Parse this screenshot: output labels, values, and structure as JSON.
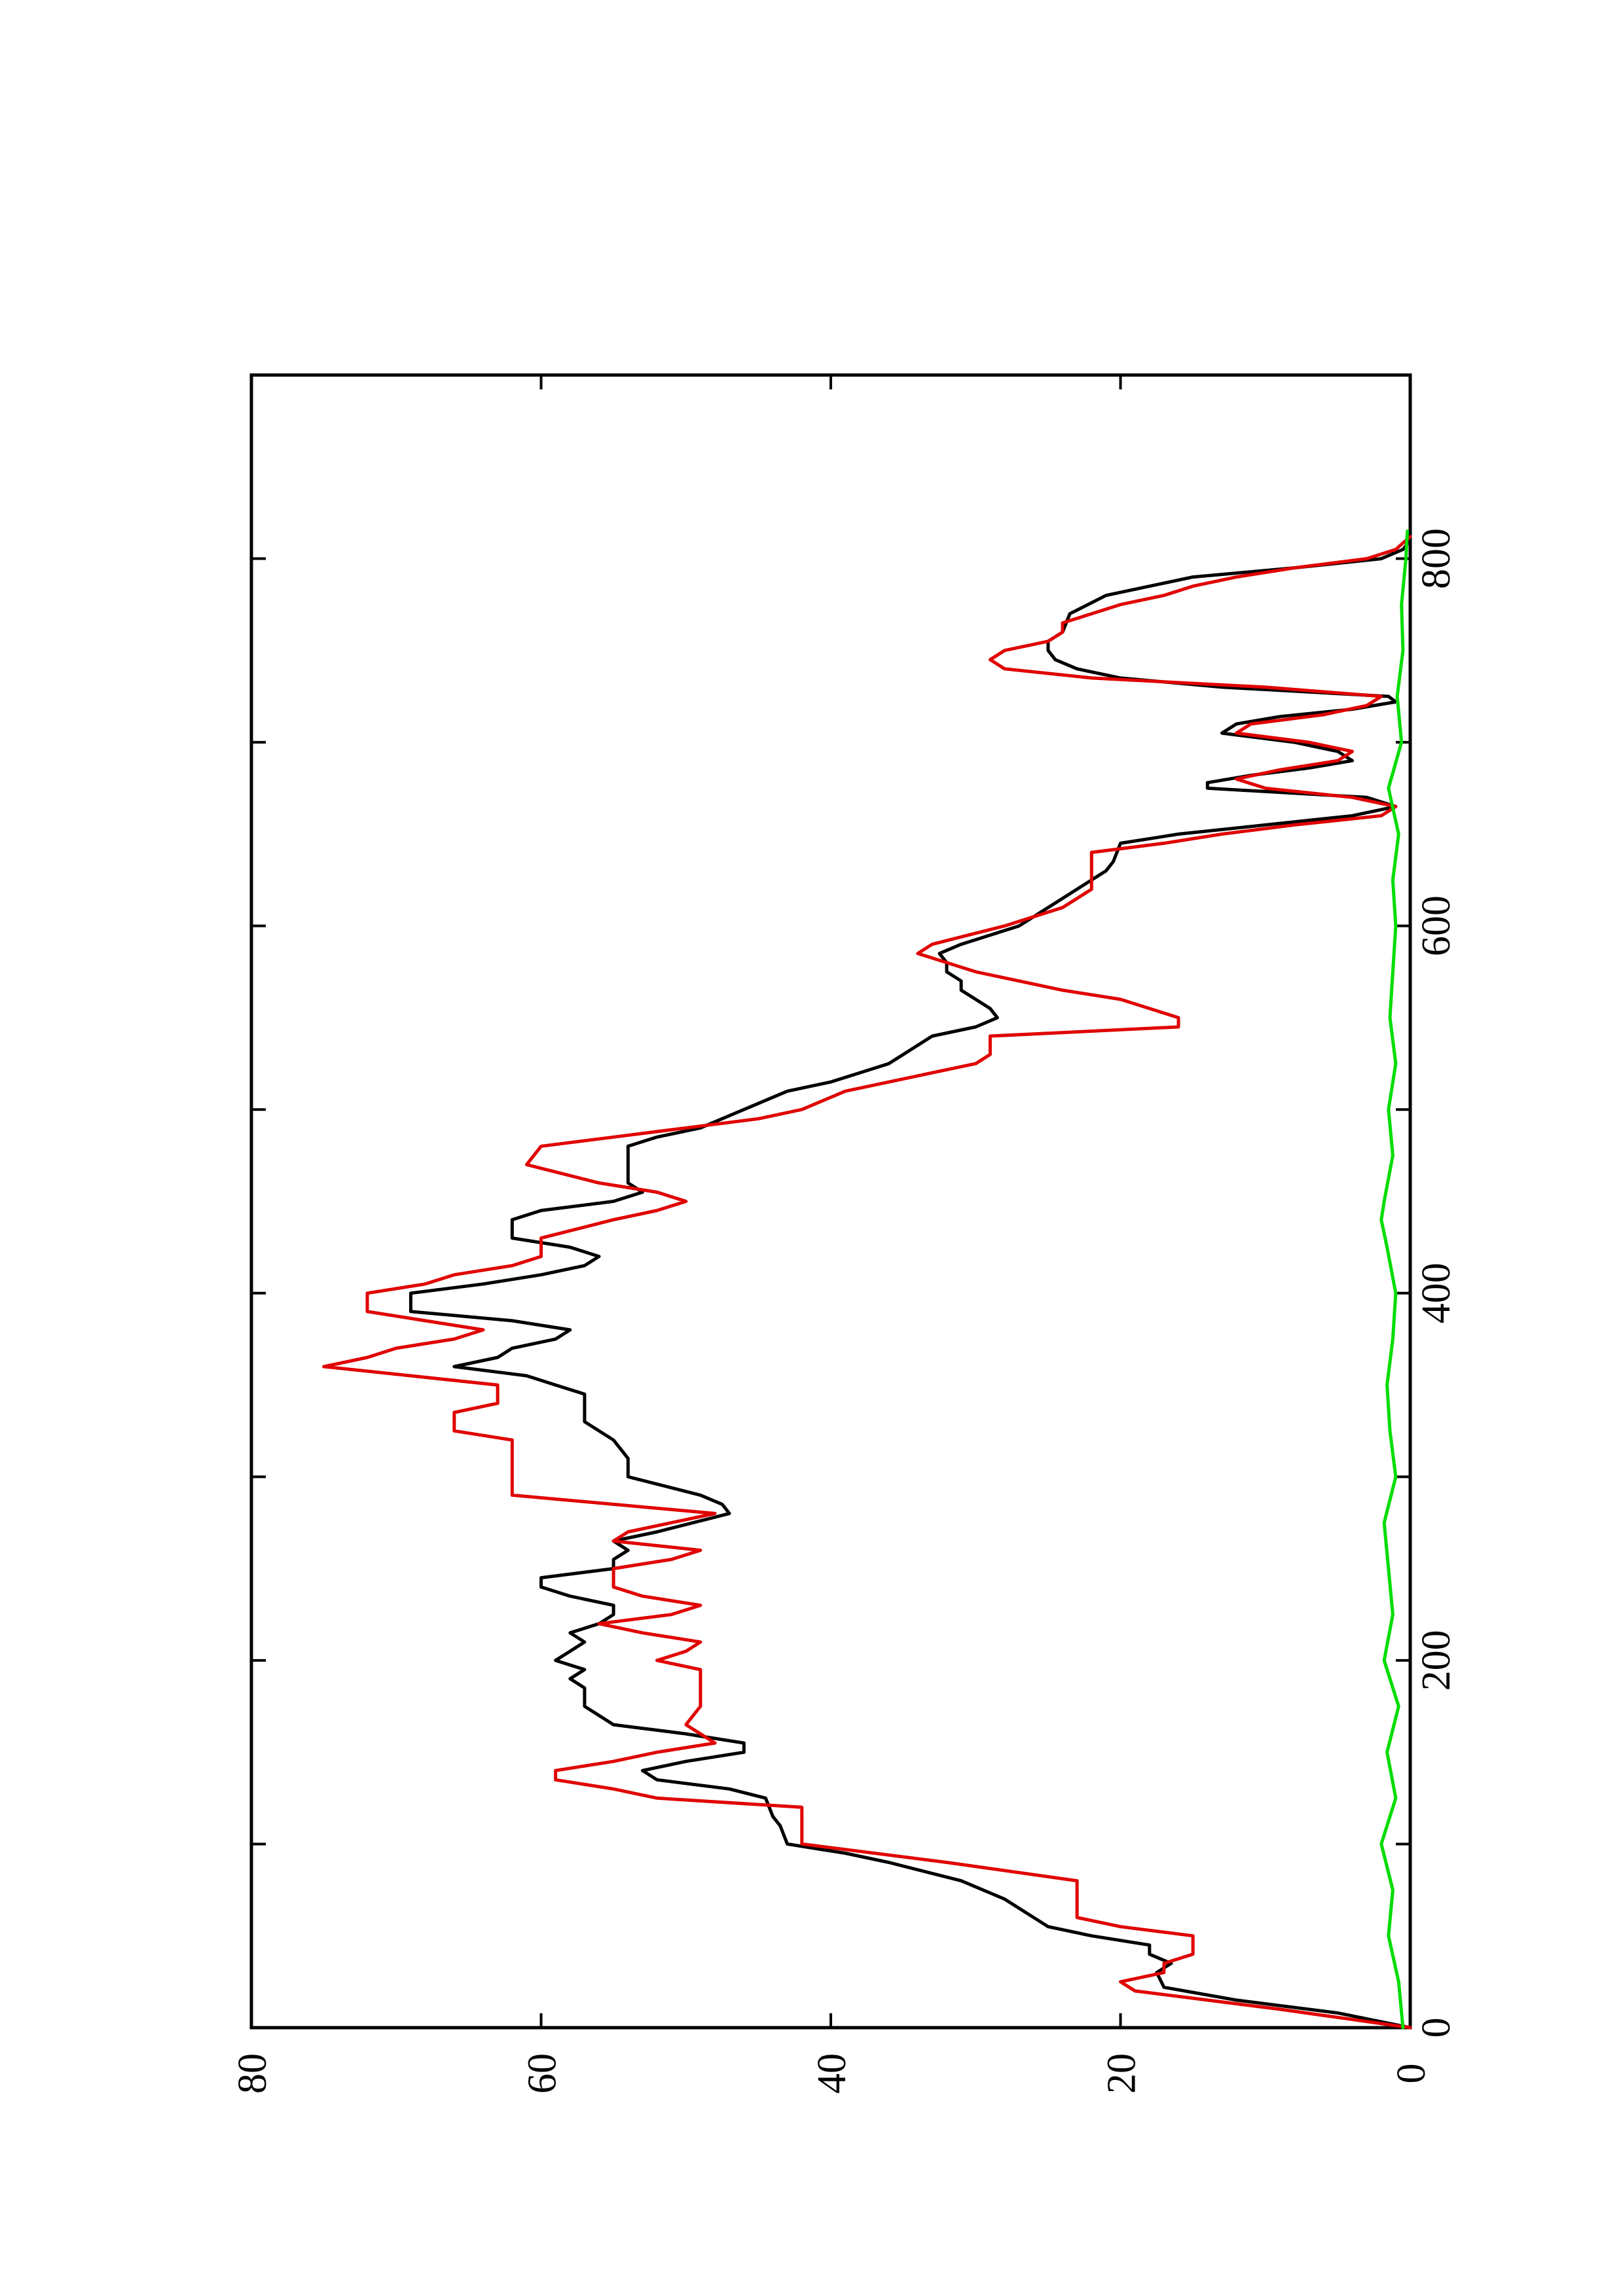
{
  "chart_data": {
    "type": "line",
    "orientation": "rotated-90-clockwise",
    "title": "",
    "xlabel": "",
    "ylabel": "",
    "xlim": [
      0,
      900
    ],
    "ylim": [
      0,
      80
    ],
    "x_ticks": [
      0,
      200,
      400,
      600,
      800
    ],
    "x_minor_ticks": [
      100,
      300,
      500,
      700,
      900
    ],
    "y_ticks": [
      0,
      20,
      40,
      60,
      80
    ],
    "x_tick_labels": [
      "0",
      "200",
      "400",
      "600",
      "800"
    ],
    "y_tick_labels": [
      "0",
      "20",
      "40",
      "60",
      "80"
    ],
    "grid": false,
    "legend": "none",
    "series": [
      {
        "color": "#000000",
        "points": [
          [
            0,
            0
          ],
          [
            8,
            5
          ],
          [
            15,
            12
          ],
          [
            22,
            17
          ],
          [
            30,
            17.5
          ],
          [
            35,
            16.5
          ],
          [
            40,
            18
          ],
          [
            45,
            18
          ],
          [
            50,
            22
          ],
          [
            55,
            25
          ],
          [
            60,
            26
          ],
          [
            70,
            28
          ],
          [
            80,
            31
          ],
          [
            90,
            36
          ],
          [
            95,
            39
          ],
          [
            100,
            43
          ],
          [
            110,
            43.5
          ],
          [
            115,
            44
          ],
          [
            125,
            44.5
          ],
          [
            130,
            47
          ],
          [
            135,
            52
          ],
          [
            140,
            53
          ],
          [
            145,
            50
          ],
          [
            150,
            46
          ],
          [
            155,
            46
          ],
          [
            160,
            50
          ],
          [
            165,
            55
          ],
          [
            175,
            57
          ],
          [
            185,
            57
          ],
          [
            190,
            58
          ],
          [
            195,
            57
          ],
          [
            200,
            59
          ],
          [
            205,
            58
          ],
          [
            210,
            57
          ],
          [
            215,
            58
          ],
          [
            220,
            56
          ],
          [
            225,
            55
          ],
          [
            230,
            55
          ],
          [
            235,
            58
          ],
          [
            240,
            60
          ],
          [
            245,
            60
          ],
          [
            250,
            55
          ],
          [
            255,
            55
          ],
          [
            260,
            54
          ],
          [
            265,
            55
          ],
          [
            270,
            52
          ],
          [
            280,
            47
          ],
          [
            285,
            47.5
          ],
          [
            290,
            49
          ],
          [
            300,
            54
          ],
          [
            310,
            54
          ],
          [
            320,
            55
          ],
          [
            330,
            57
          ],
          [
            345,
            57
          ],
          [
            350,
            59
          ],
          [
            355,
            61
          ],
          [
            360,
            66
          ],
          [
            365,
            63
          ],
          [
            370,
            62
          ],
          [
            375,
            59
          ],
          [
            380,
            58
          ],
          [
            385,
            62
          ],
          [
            390,
            69
          ],
          [
            400,
            69
          ],
          [
            405,
            64
          ],
          [
            410,
            60
          ],
          [
            415,
            57
          ],
          [
            420,
            56
          ],
          [
            425,
            58
          ],
          [
            430,
            62
          ],
          [
            440,
            62
          ],
          [
            445,
            60
          ],
          [
            450,
            55
          ],
          [
            455,
            53
          ],
          [
            460,
            54
          ],
          [
            470,
            54
          ],
          [
            480,
            54
          ],
          [
            485,
            52
          ],
          [
            490,
            49
          ],
          [
            500,
            46
          ],
          [
            510,
            43
          ],
          [
            515,
            40
          ],
          [
            520,
            38
          ],
          [
            525,
            36
          ],
          [
            530,
            35
          ],
          [
            540,
            33
          ],
          [
            545,
            30
          ],
          [
            550,
            28.5
          ],
          [
            555,
            29
          ],
          [
            560,
            30
          ],
          [
            565,
            31
          ],
          [
            570,
            31
          ],
          [
            575,
            32
          ],
          [
            580,
            32
          ],
          [
            585,
            32.5
          ],
          [
            590,
            31
          ],
          [
            595,
            29
          ],
          [
            600,
            27
          ],
          [
            610,
            25
          ],
          [
            615,
            24
          ],
          [
            625,
            22
          ],
          [
            630,
            21
          ],
          [
            635,
            20.5
          ],
          [
            645,
            20
          ],
          [
            650,
            16
          ],
          [
            655,
            10
          ],
          [
            660,
            4
          ],
          [
            665,
            1
          ],
          [
            670,
            3
          ],
          [
            675,
            14
          ],
          [
            678,
            14
          ],
          [
            682,
            11
          ],
          [
            686,
            7
          ],
          [
            690,
            4
          ],
          [
            695,
            5
          ],
          [
            700,
            8
          ],
          [
            705,
            13
          ],
          [
            710,
            12
          ],
          [
            714,
            9
          ],
          [
            718,
            4
          ],
          [
            722,
            1
          ],
          [
            725,
            1.5
          ],
          [
            730,
            13
          ],
          [
            735,
            20
          ],
          [
            740,
            23
          ],
          [
            745,
            24.5
          ],
          [
            750,
            25
          ],
          [
            755,
            25
          ],
          [
            760,
            24
          ],
          [
            770,
            23.5
          ],
          [
            780,
            21
          ],
          [
            790,
            15
          ],
          [
            795,
            8
          ],
          [
            800,
            2
          ],
          [
            805,
            0.5
          ],
          [
            810,
            0
          ]
        ]
      },
      {
        "color": "#e00000",
        "points": [
          [
            0,
            0
          ],
          [
            10,
            9
          ],
          [
            15,
            14
          ],
          [
            20,
            19
          ],
          [
            25,
            20
          ],
          [
            30,
            17
          ],
          [
            35,
            17
          ],
          [
            40,
            15
          ],
          [
            50,
            15
          ],
          [
            55,
            20
          ],
          [
            60,
            23
          ],
          [
            80,
            23
          ],
          [
            90,
            32
          ],
          [
            100,
            42
          ],
          [
            120,
            42
          ],
          [
            125,
            52
          ],
          [
            130,
            55
          ],
          [
            135,
            59
          ],
          [
            140,
            59
          ],
          [
            145,
            55
          ],
          [
            150,
            52
          ],
          [
            155,
            48
          ],
          [
            165,
            50
          ],
          [
            175,
            49
          ],
          [
            185,
            49
          ],
          [
            195,
            49
          ],
          [
            200,
            52
          ],
          [
            205,
            50
          ],
          [
            210,
            49
          ],
          [
            215,
            53
          ],
          [
            220,
            56
          ],
          [
            225,
            51
          ],
          [
            230,
            49
          ],
          [
            235,
            53
          ],
          [
            240,
            55
          ],
          [
            250,
            55
          ],
          [
            255,
            51
          ],
          [
            260,
            49
          ],
          [
            265,
            55
          ],
          [
            270,
            54
          ],
          [
            280,
            48
          ],
          [
            290,
            62
          ],
          [
            300,
            62
          ],
          [
            320,
            62
          ],
          [
            325,
            66
          ],
          [
            335,
            66
          ],
          [
            340,
            63
          ],
          [
            350,
            63
          ],
          [
            355,
            69
          ],
          [
            360,
            75
          ],
          [
            365,
            72
          ],
          [
            370,
            70
          ],
          [
            375,
            66
          ],
          [
            380,
            64
          ],
          [
            390,
            72
          ],
          [
            400,
            72
          ],
          [
            405,
            68
          ],
          [
            410,
            66
          ],
          [
            415,
            62
          ],
          [
            420,
            60
          ],
          [
            430,
            60
          ],
          [
            440,
            55
          ],
          [
            445,
            52
          ],
          [
            450,
            50
          ],
          [
            455,
            52
          ],
          [
            460,
            56
          ],
          [
            470,
            61
          ],
          [
            480,
            60
          ],
          [
            485,
            55
          ],
          [
            490,
            50
          ],
          [
            495,
            45
          ],
          [
            500,
            42
          ],
          [
            510,
            39
          ],
          [
            520,
            33
          ],
          [
            525,
            30
          ],
          [
            530,
            29
          ],
          [
            540,
            29
          ],
          [
            545,
            16
          ],
          [
            550,
            16
          ],
          [
            555,
            18
          ],
          [
            560,
            20
          ],
          [
            565,
            24
          ],
          [
            570,
            27
          ],
          [
            575,
            30
          ],
          [
            580,
            32
          ],
          [
            585,
            34
          ],
          [
            590,
            33
          ],
          [
            600,
            28
          ],
          [
            610,
            24
          ],
          [
            620,
            22
          ],
          [
            640,
            22
          ],
          [
            645,
            17
          ],
          [
            650,
            13
          ],
          [
            655,
            8
          ],
          [
            660,
            2
          ],
          [
            665,
            1
          ],
          [
            670,
            4
          ],
          [
            675,
            10
          ],
          [
            680,
            12
          ],
          [
            685,
            9
          ],
          [
            690,
            5
          ],
          [
            695,
            4
          ],
          [
            700,
            7
          ],
          [
            705,
            12
          ],
          [
            710,
            11
          ],
          [
            715,
            6
          ],
          [
            720,
            3
          ],
          [
            725,
            2
          ],
          [
            730,
            10
          ],
          [
            735,
            22
          ],
          [
            740,
            28
          ],
          [
            745,
            29
          ],
          [
            750,
            28
          ],
          [
            755,
            25
          ],
          [
            760,
            24
          ],
          [
            765,
            24
          ],
          [
            770,
            22
          ],
          [
            775,
            20
          ],
          [
            780,
            17
          ],
          [
            785,
            15
          ],
          [
            790,
            12
          ],
          [
            795,
            8
          ],
          [
            800,
            3
          ],
          [
            805,
            1
          ],
          [
            812,
            0
          ]
        ]
      },
      {
        "color": "#00dd00",
        "points": [
          [
            0,
            0.5
          ],
          [
            25,
            0.8
          ],
          [
            50,
            1.5
          ],
          [
            75,
            1.2
          ],
          [
            100,
            2.0
          ],
          [
            125,
            1.0
          ],
          [
            150,
            1.6
          ],
          [
            175,
            0.8
          ],
          [
            200,
            1.8
          ],
          [
            225,
            1.2
          ],
          [
            250,
            1.5
          ],
          [
            275,
            1.8
          ],
          [
            300,
            1.0
          ],
          [
            325,
            1.4
          ],
          [
            350,
            1.6
          ],
          [
            375,
            1.2
          ],
          [
            400,
            1.0
          ],
          [
            425,
            1.6
          ],
          [
            440,
            2.0
          ],
          [
            450,
            1.8
          ],
          [
            475,
            1.2
          ],
          [
            500,
            1.5
          ],
          [
            525,
            1.0
          ],
          [
            550,
            1.4
          ],
          [
            575,
            1.2
          ],
          [
            600,
            1.0
          ],
          [
            625,
            1.2
          ],
          [
            650,
            0.8
          ],
          [
            675,
            1.5
          ],
          [
            700,
            0.6
          ],
          [
            725,
            0.9
          ],
          [
            750,
            0.5
          ],
          [
            775,
            0.6
          ],
          [
            800,
            0.3
          ],
          [
            815,
            0.2
          ]
        ]
      }
    ]
  }
}
